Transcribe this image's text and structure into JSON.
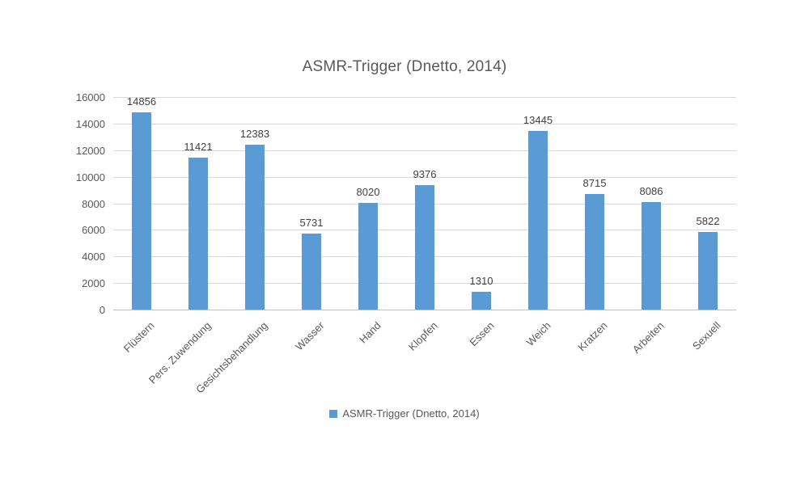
{
  "title": "ASMR-Trigger (Dnetto, 2014)",
  "legend": {
    "label": "ASMR-Trigger (Dnetto, 2014)",
    "swatch_color": "#5b9bd5",
    "position": "bottom"
  },
  "colors": {
    "bar": "#5b9bd5",
    "title_text": "#595959",
    "axis_tick_text": "#595959",
    "data_label_text": "#404040",
    "gridline": "#d9d9d9",
    "axis_line": "#bfbfbf",
    "background": "#ffffff"
  },
  "chart_data": {
    "type": "bar",
    "title": "ASMR-Trigger (Dnetto, 2014)",
    "categories": [
      "Flüstern",
      "Pers. Zuwendung",
      "Gesichtsbehandlung",
      "Wasser",
      "Hand",
      "Klopfen",
      "Essen",
      "Weich",
      "Kratzen",
      "Arbeiten",
      "Sexuell"
    ],
    "values": [
      14856,
      11421,
      12383,
      5731,
      8020,
      9376,
      1310,
      13445,
      8715,
      8086,
      5822
    ],
    "series_name": "ASMR-Trigger (Dnetto, 2014)",
    "xlabel": "",
    "ylabel": "",
    "ylim": [
      0,
      16000
    ],
    "yticks": [
      0,
      2000,
      4000,
      6000,
      8000,
      10000,
      12000,
      14000,
      16000
    ],
    "grid": true,
    "data_labels": true,
    "legend_position": "bottom",
    "x_label_rotation_deg": -45
  }
}
